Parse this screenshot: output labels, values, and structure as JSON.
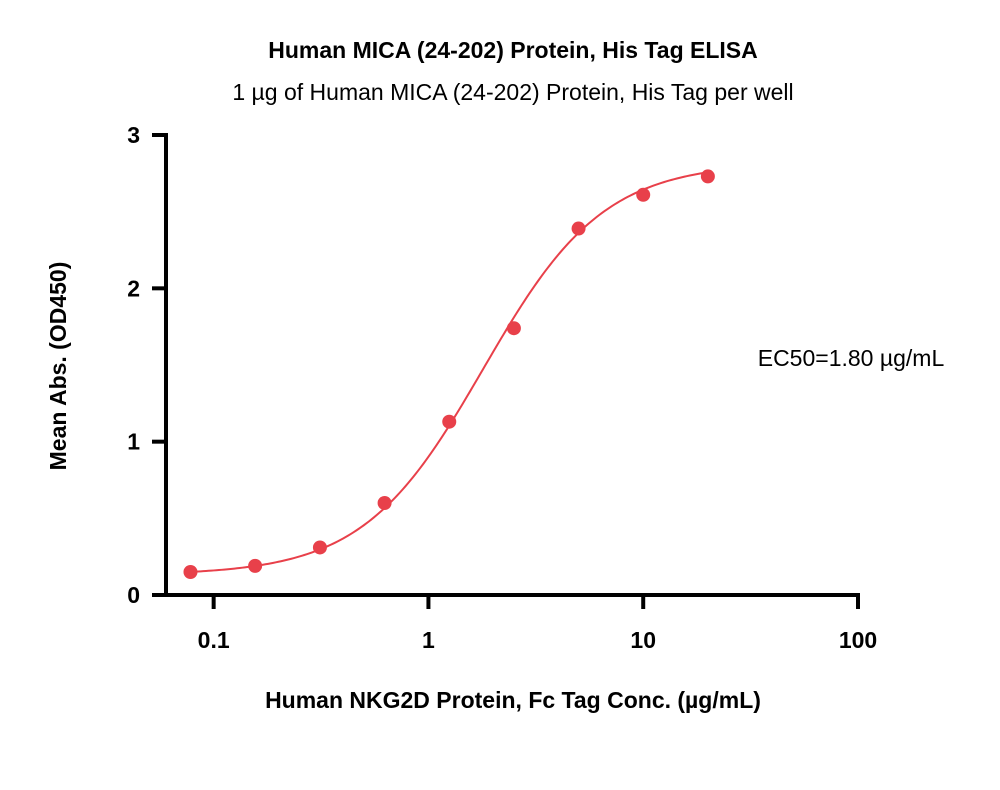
{
  "chart_data": {
    "type": "scatter",
    "title": "Human MICA (24-202) Protein, His Tag ELISA",
    "subtitle": "1 µg of Human MICA (24-202) Protein, His Tag per well",
    "xlabel": "Human NKG2D Protein, Fc Tag Conc. (µg/mL)",
    "ylabel": "Mean Abs. (OD450)",
    "x_scale": "log",
    "xlim": [
      0.06,
      100
    ],
    "ylim": [
      0,
      3
    ],
    "x_ticks": [
      0.1,
      1,
      10,
      100
    ],
    "x_tick_labels": [
      "0.1",
      "1",
      "10",
      "100"
    ],
    "y_ticks": [
      0,
      1,
      2,
      3
    ],
    "y_tick_labels": [
      "0",
      "1",
      "2",
      "3"
    ],
    "grid": false,
    "series": [
      {
        "color": "#e8404a",
        "x": [
          0.078,
          0.156,
          0.3125,
          0.625,
          1.25,
          2.5,
          5,
          10,
          20
        ],
        "y": [
          0.15,
          0.19,
          0.31,
          0.6,
          1.13,
          1.74,
          2.39,
          2.61,
          2.73
        ]
      }
    ],
    "fit_curve": {
      "model": "4PL",
      "bottom": 0.13,
      "top": 2.82,
      "ec50": 1.8,
      "hill": 1.55,
      "color": "#e8404a"
    },
    "annotation": "EC50=1.80 µg/mL"
  }
}
